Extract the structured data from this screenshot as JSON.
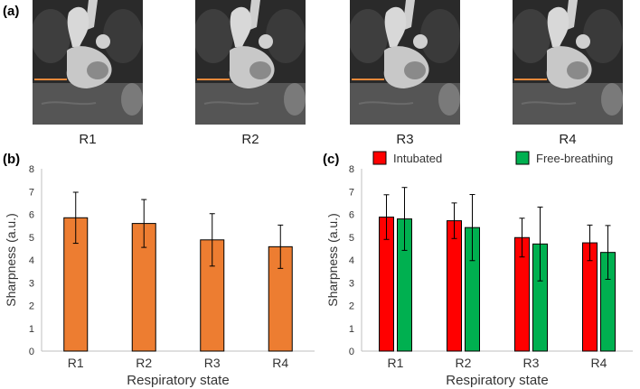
{
  "panels": {
    "a": "(a)",
    "b": "(b)",
    "c": "(c)"
  },
  "images": {
    "labels": [
      "R1",
      "R2",
      "R3",
      "R4"
    ],
    "description": "MRI coronal slices with orange measurement line"
  },
  "colors": {
    "single": "#ED7D31",
    "intubated": "#FF0000",
    "free_breathing": "#00B050",
    "measure_line": "#E8893A"
  },
  "chart_data": [
    {
      "type": "bar",
      "panel": "b",
      "categories": [
        "R1",
        "R2",
        "R3",
        "R4"
      ],
      "values": [
        5.85,
        5.6,
        4.88,
        4.58
      ],
      "errors": [
        1.12,
        1.05,
        1.15,
        0.95
      ],
      "xlabel": "Respiratory state",
      "ylabel": "Sharpness (a.u.)",
      "ylim": [
        0,
        8
      ],
      "yticks": [
        "0",
        "1",
        "2",
        "3",
        "4",
        "5",
        "6",
        "7",
        "8"
      ],
      "grid": false
    },
    {
      "type": "bar",
      "panel": "c",
      "categories": [
        "R1",
        "R2",
        "R3",
        "R4"
      ],
      "series": [
        {
          "name": "Intubated",
          "values": [
            5.88,
            5.72,
            4.98,
            4.75
          ],
          "errors": [
            0.98,
            0.78,
            0.85,
            0.78
          ]
        },
        {
          "name": "Free-breathing",
          "values": [
            5.8,
            5.42,
            4.7,
            4.33
          ],
          "errors": [
            1.38,
            1.45,
            1.62,
            1.18
          ]
        }
      ],
      "xlabel": "Respiratory state",
      "ylabel": "Sharpness (a.u.)",
      "ylim": [
        0,
        8
      ],
      "yticks": [
        "0",
        "1",
        "2",
        "3",
        "4",
        "5",
        "6",
        "7",
        "8"
      ],
      "legend": "top",
      "grid": false
    }
  ]
}
